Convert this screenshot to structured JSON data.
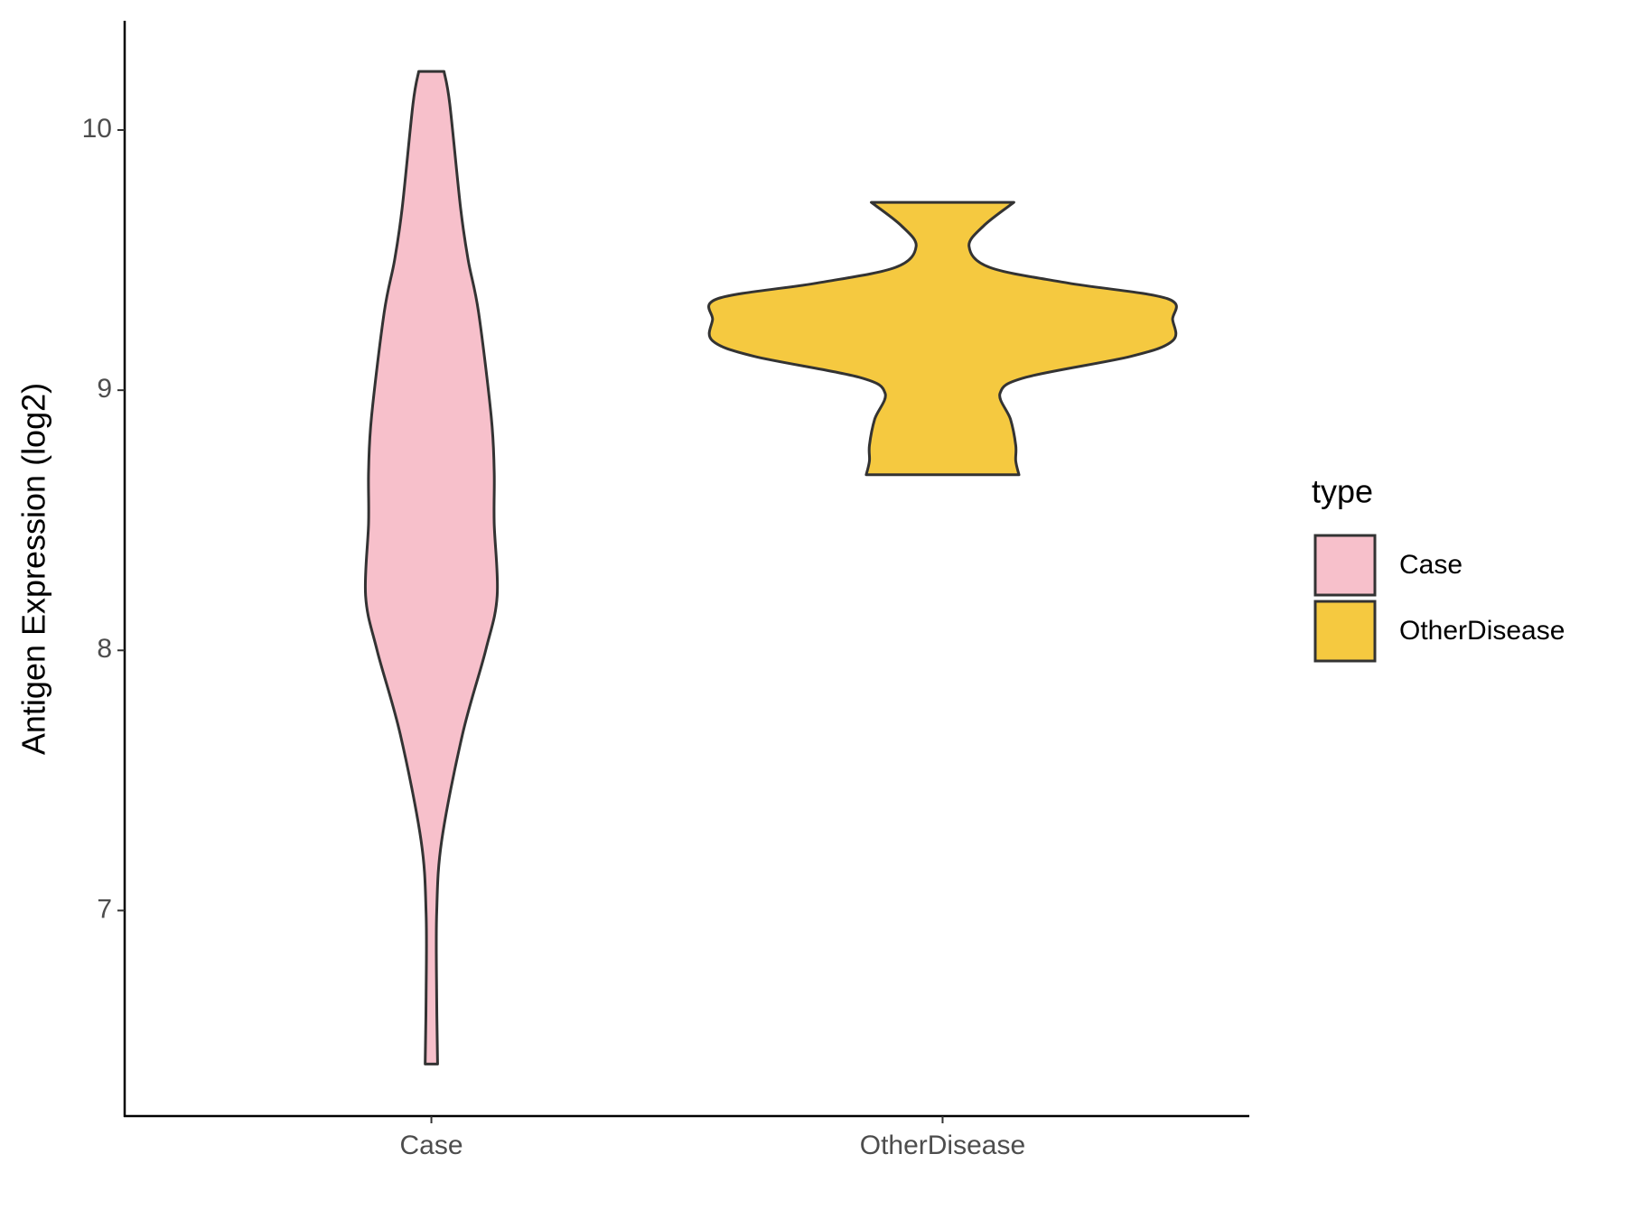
{
  "chart_data": {
    "type": "violin",
    "y_label": "Antigen Expression (log2)",
    "categories": [
      "Case",
      "OtherDisease"
    ],
    "legend_title": "type",
    "legend_position": "right",
    "ylim": [
      6.21,
      10.42
    ],
    "yticks": [
      7,
      8,
      9,
      10
    ],
    "grid": false,
    "series": [
      {
        "name": "Case",
        "color": "#F7C0CB",
        "y": [
          10.225,
          10.1,
          9.7,
          9.5,
          9.3,
          8.9,
          8.69,
          8.49,
          8.21,
          8.0,
          7.68,
          7.27,
          6.99,
          6.67,
          6.41
        ],
        "density": [
          0.055,
          0.08,
          0.127,
          0.16,
          0.205,
          0.26,
          0.273,
          0.273,
          0.286,
          0.236,
          0.136,
          0.045,
          0.023,
          0.023,
          0.027
        ]
      },
      {
        "name": "OtherDisease",
        "color": "#F5C940",
        "y": [
          9.722,
          9.633,
          9.553,
          9.472,
          9.412,
          9.352,
          9.271,
          9.19,
          9.13,
          9.05,
          8.989,
          8.889,
          8.788,
          8.728,
          8.675
        ],
        "density": [
          0.31,
          0.18,
          0.115,
          0.205,
          0.545,
          0.977,
          1.0,
          1.0,
          0.818,
          0.364,
          0.25,
          0.295,
          0.318,
          0.318,
          0.332
        ]
      }
    ]
  }
}
